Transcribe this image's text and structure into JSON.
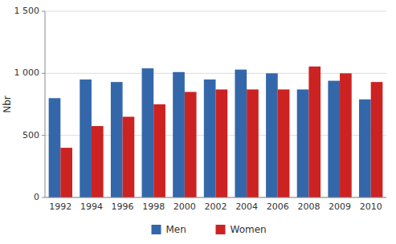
{
  "chart_data": {
    "type": "bar",
    "y_label": "Nbr",
    "categories": [
      "1992",
      "1994",
      "1996",
      "1998",
      "2000",
      "2002",
      "2004",
      "2006",
      "2008",
      "2009",
      "2010"
    ],
    "series": [
      {
        "name": "Men",
        "color": "#3467AA",
        "values": [
          800,
          950,
          930,
          1040,
          1010,
          950,
          1030,
          1000,
          870,
          940,
          790
        ]
      },
      {
        "name": "Women",
        "color": "#CC2222",
        "values": [
          400,
          575,
          650,
          750,
          850,
          870,
          870,
          870,
          1055,
          1000,
          930
        ]
      }
    ],
    "ylim": [
      0,
      1500
    ],
    "yticks": [
      0,
      500,
      {
        "value": 1000,
        "label": "1 000"
      },
      {
        "value": 1500,
        "label": "1 500"
      }
    ],
    "grid": true,
    "legend": "bottom"
  }
}
